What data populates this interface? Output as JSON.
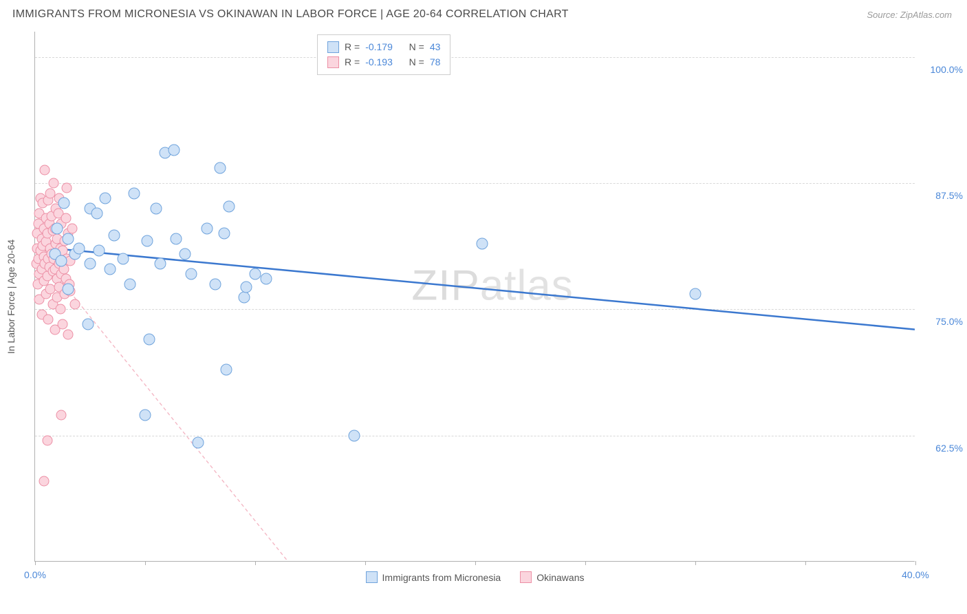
{
  "title": "IMMIGRANTS FROM MICRONESIA VS OKINAWAN IN LABOR FORCE | AGE 20-64 CORRELATION CHART",
  "source": "Source: ZipAtlas.com",
  "y_axis_label": "In Labor Force | Age 20-64",
  "watermark_bold": "ZIP",
  "watermark_thin": "atlas",
  "chart": {
    "type": "scatter",
    "xlim": [
      0,
      40
    ],
    "ylim": [
      50,
      102.5
    ],
    "x_ticks": [
      0,
      5,
      10,
      15,
      20,
      25,
      30,
      35,
      40
    ],
    "x_tick_labels": {
      "0": "0.0%",
      "40": "40.0%"
    },
    "y_gridlines": [
      62.5,
      75.0,
      87.5,
      100.0
    ],
    "y_tick_labels": [
      "62.5%",
      "75.0%",
      "87.5%",
      "100.0%"
    ],
    "background_color": "#ffffff",
    "grid_color": "#d8d8d8",
    "axis_color": "#b0b0b0",
    "label_color": "#4a87d8",
    "series": [
      {
        "name": "Immigrants from Micronesia",
        "marker_fill": "#cfe2f7",
        "marker_stroke": "#6fa3dc",
        "marker_size": 17,
        "stats": {
          "R": "-0.179",
          "N": "43"
        },
        "trend": {
          "x1": 0,
          "y1": 81.2,
          "x2": 40,
          "y2": 73.0,
          "stroke": "#3b78cf",
          "width": 2.5,
          "dash": "none"
        },
        "points": [
          [
            0.9,
            80.5
          ],
          [
            1.0,
            83.0
          ],
          [
            1.2,
            79.8
          ],
          [
            1.3,
            85.5
          ],
          [
            1.5,
            77.0
          ],
          [
            1.5,
            82.0
          ],
          [
            1.8,
            80.5
          ],
          [
            2.0,
            81.0
          ],
          [
            2.4,
            73.5
          ],
          [
            2.5,
            79.5
          ],
          [
            2.5,
            85.0
          ],
          [
            2.8,
            84.5
          ],
          [
            2.9,
            80.8
          ],
          [
            3.2,
            86.0
          ],
          [
            3.4,
            79.0
          ],
          [
            3.6,
            82.3
          ],
          [
            4.0,
            80.0
          ],
          [
            4.3,
            77.5
          ],
          [
            4.5,
            86.5
          ],
          [
            5.0,
            64.5
          ],
          [
            5.1,
            81.8
          ],
          [
            5.2,
            72.0
          ],
          [
            5.5,
            85.0
          ],
          [
            5.7,
            79.5
          ],
          [
            5.9,
            90.5
          ],
          [
            6.3,
            90.8
          ],
          [
            6.4,
            82.0
          ],
          [
            6.8,
            80.5
          ],
          [
            7.1,
            78.5
          ],
          [
            7.4,
            61.8
          ],
          [
            7.8,
            83.0
          ],
          [
            8.2,
            77.5
          ],
          [
            8.4,
            89.0
          ],
          [
            8.6,
            82.5
          ],
          [
            8.7,
            69.0
          ],
          [
            8.8,
            85.2
          ],
          [
            9.5,
            76.2
          ],
          [
            9.6,
            77.2
          ],
          [
            10.0,
            78.5
          ],
          [
            10.5,
            78.0
          ],
          [
            14.5,
            62.5
          ],
          [
            20.3,
            81.5
          ],
          [
            30.0,
            76.5
          ]
        ]
      },
      {
        "name": "Okinawans",
        "marker_fill": "#fbd5de",
        "marker_stroke": "#ec8fa5",
        "marker_size": 15,
        "stats": {
          "R": "-0.193",
          "N": "78"
        },
        "trend": {
          "x1": 0,
          "y1": 81.0,
          "x2": 11.5,
          "y2": 50.0,
          "stroke": "#f4b8c5",
          "width": 1.4,
          "dash": "5,4"
        },
        "points": [
          [
            0.05,
            79.5
          ],
          [
            0.1,
            81.0
          ],
          [
            0.1,
            82.5
          ],
          [
            0.12,
            77.5
          ],
          [
            0.15,
            80.0
          ],
          [
            0.15,
            83.5
          ],
          [
            0.2,
            78.5
          ],
          [
            0.2,
            84.5
          ],
          [
            0.2,
            76.0
          ],
          [
            0.25,
            80.8
          ],
          [
            0.25,
            86.0
          ],
          [
            0.3,
            79.0
          ],
          [
            0.3,
            82.0
          ],
          [
            0.3,
            74.5
          ],
          [
            0.35,
            81.3
          ],
          [
            0.35,
            85.5
          ],
          [
            0.4,
            77.8
          ],
          [
            0.4,
            83.0
          ],
          [
            0.4,
            80.2
          ],
          [
            0.45,
            88.8
          ],
          [
            0.45,
            79.5
          ],
          [
            0.5,
            76.5
          ],
          [
            0.5,
            81.7
          ],
          [
            0.5,
            84.0
          ],
          [
            0.55,
            78.3
          ],
          [
            0.55,
            82.5
          ],
          [
            0.6,
            80.0
          ],
          [
            0.6,
            85.8
          ],
          [
            0.6,
            74.0
          ],
          [
            0.65,
            79.2
          ],
          [
            0.65,
            83.5
          ],
          [
            0.7,
            81.0
          ],
          [
            0.7,
            77.0
          ],
          [
            0.7,
            86.5
          ],
          [
            0.75,
            80.5
          ],
          [
            0.75,
            84.2
          ],
          [
            0.8,
            78.8
          ],
          [
            0.8,
            82.8
          ],
          [
            0.8,
            75.5
          ],
          [
            0.85,
            80.0
          ],
          [
            0.85,
            87.5
          ],
          [
            0.9,
            79.0
          ],
          [
            0.9,
            83.0
          ],
          [
            0.9,
            73.0
          ],
          [
            0.95,
            81.5
          ],
          [
            0.95,
            85.0
          ],
          [
            1.0,
            78.0
          ],
          [
            1.0,
            82.0
          ],
          [
            1.0,
            76.2
          ],
          [
            1.05,
            80.3
          ],
          [
            1.05,
            84.5
          ],
          [
            1.1,
            79.5
          ],
          [
            1.1,
            77.2
          ],
          [
            1.1,
            86.0
          ],
          [
            1.15,
            81.0
          ],
          [
            1.15,
            75.0
          ],
          [
            1.2,
            83.5
          ],
          [
            1.2,
            78.5
          ],
          [
            1.25,
            80.8
          ],
          [
            1.25,
            73.5
          ],
          [
            1.3,
            85.5
          ],
          [
            1.3,
            79.0
          ],
          [
            1.35,
            81.8
          ],
          [
            1.35,
            76.5
          ],
          [
            1.4,
            84.0
          ],
          [
            1.4,
            78.0
          ],
          [
            1.45,
            80.0
          ],
          [
            1.45,
            87.0
          ],
          [
            1.5,
            72.5
          ],
          [
            1.5,
            82.5
          ],
          [
            1.55,
            77.5
          ],
          [
            1.6,
            79.8
          ],
          [
            1.7,
            83.0
          ],
          [
            1.8,
            75.5
          ],
          [
            0.4,
            58.0
          ],
          [
            0.55,
            62.0
          ],
          [
            1.2,
            64.5
          ],
          [
            1.6,
            76.8
          ]
        ]
      }
    ]
  },
  "legend": {
    "series1_label": "Immigrants from Micronesia",
    "series2_label": "Okinawans"
  },
  "stats_labels": {
    "R": "R =",
    "N": "N ="
  }
}
